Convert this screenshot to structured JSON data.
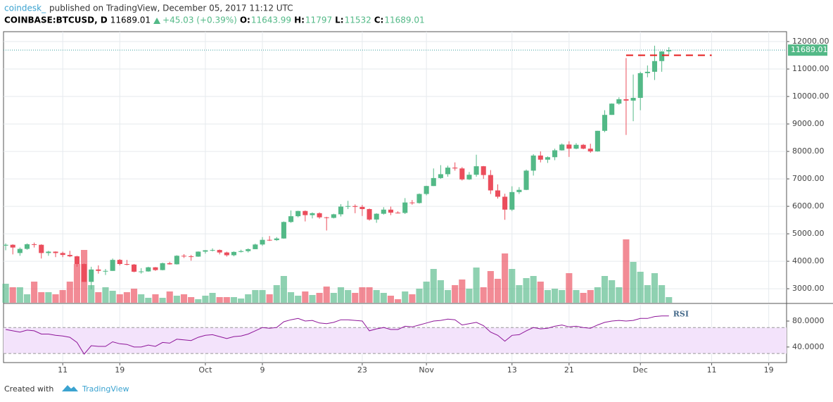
{
  "header": {
    "author": "coindesk_",
    "published": "published on TradingView, December 05, 2017 11:12 UTC",
    "symbol": "COINBASE:BTCUSD, D",
    "change": "+45.03 (+0.39%)",
    "ohlc_labels": [
      "O:",
      "H:",
      "L:",
      "C:"
    ]
  },
  "footer": {
    "created": "Created with",
    "brand": "TradingView"
  },
  "chart_data": {
    "type": "candlestick",
    "categories": [
      null,
      null,
      null,
      null,
      null,
      null,
      null,
      null,
      "11",
      null,
      null,
      null,
      null,
      null,
      null,
      null,
      "19",
      null,
      null,
      null,
      null,
      null,
      null,
      null,
      null,
      null,
      null,
      null,
      "Oct",
      null,
      null,
      null,
      null,
      null,
      null,
      null,
      "9",
      null,
      null,
      null,
      null,
      null,
      null,
      null,
      null,
      null,
      null,
      null,
      null,
      null,
      "23",
      null,
      null,
      null,
      null,
      null,
      null,
      null,
      null,
      "Nov",
      null,
      null,
      null,
      null,
      null,
      null,
      null,
      null,
      null,
      null,
      null,
      "13",
      null,
      null,
      null,
      null,
      null,
      null,
      null,
      "21",
      null,
      null,
      null,
      null,
      null,
      null,
      null,
      null,
      null,
      "Dec",
      null,
      null,
      null,
      null,
      null,
      null,
      null,
      null,
      null,
      "11",
      null,
      null,
      null,
      null,
      null,
      null,
      null,
      "19",
      null,
      null
    ],
    "ohlc": [
      [
        4570,
        4650,
        4400,
        4600
      ],
      [
        4600,
        4620,
        4250,
        4500
      ],
      [
        4300,
        4500,
        4200,
        4450
      ],
      [
        4450,
        4650,
        4420,
        4620
      ],
      [
        4620,
        4680,
        4500,
        4600
      ],
      [
        4600,
        4620,
        4100,
        4300
      ],
      [
        4300,
        4380,
        4200,
        4350
      ],
      [
        4350,
        4360,
        4150,
        4300
      ],
      [
        4300,
        4350,
        4150,
        4230
      ],
      [
        4230,
        4380,
        4150,
        4180
      ],
      [
        4180,
        4200,
        3800,
        3900
      ],
      [
        3900,
        3920,
        3250,
        3250
      ],
      [
        3250,
        3800,
        2980,
        3700
      ],
      [
        3700,
        3850,
        3550,
        3650
      ],
      [
        3650,
        3720,
        3500,
        3650
      ],
      [
        3650,
        4100,
        3650,
        4050
      ],
      [
        4050,
        4080,
        3850,
        3900
      ],
      [
        3900,
        4050,
        3850,
        3880
      ],
      [
        3880,
        3900,
        3600,
        3620
      ],
      [
        3620,
        3750,
        3550,
        3630
      ],
      [
        3630,
        3800,
        3620,
        3780
      ],
      [
        3780,
        3790,
        3650,
        3680
      ],
      [
        3680,
        3950,
        3670,
        3930
      ],
      [
        3930,
        3980,
        3880,
        3890
      ],
      [
        3890,
        4220,
        3880,
        4200
      ],
      [
        4200,
        4260,
        4120,
        4180
      ],
      [
        4180,
        4230,
        4020,
        4170
      ],
      [
        4170,
        4360,
        4160,
        4350
      ],
      [
        4350,
        4410,
        4280,
        4400
      ],
      [
        4400,
        4470,
        4360,
        4410
      ],
      [
        4410,
        4430,
        4250,
        4320
      ],
      [
        4320,
        4350,
        4170,
        4220
      ],
      [
        4220,
        4360,
        4180,
        4340
      ],
      [
        4340,
        4420,
        4320,
        4370
      ],
      [
        4370,
        4470,
        4320,
        4440
      ],
      [
        4440,
        4640,
        4440,
        4610
      ],
      [
        4610,
        4880,
        4560,
        4780
      ],
      [
        4780,
        4920,
        4740,
        4770
      ],
      [
        4770,
        4880,
        4740,
        4830
      ],
      [
        4830,
        5450,
        4820,
        5430
      ],
      [
        5430,
        5850,
        5400,
        5640
      ],
      [
        5640,
        5840,
        5600,
        5830
      ],
      [
        5830,
        5850,
        5450,
        5680
      ],
      [
        5680,
        5780,
        5560,
        5750
      ],
      [
        5750,
        5780,
        5550,
        5600
      ],
      [
        5600,
        5620,
        5120,
        5580
      ],
      [
        5580,
        5730,
        5560,
        5710
      ],
      [
        5710,
        6080,
        5630,
        5990
      ],
      [
        5990,
        6200,
        5900,
        6010
      ],
      [
        6010,
        6070,
        5750,
        5980
      ],
      [
        5980,
        6050,
        5650,
        5900
      ],
      [
        5900,
        5920,
        5480,
        5520
      ],
      [
        5520,
        5750,
        5400,
        5730
      ],
      [
        5730,
        5970,
        5700,
        5880
      ],
      [
        5880,
        5990,
        5680,
        5770
      ],
      [
        5770,
        5820,
        5740,
        5760
      ],
      [
        5760,
        6300,
        5720,
        6140
      ],
      [
        6140,
        6230,
        6060,
        6120
      ],
      [
        6120,
        6470,
        6100,
        6450
      ],
      [
        6450,
        6750,
        6400,
        6740
      ],
      [
        6740,
        7380,
        6740,
        7030
      ],
      [
        7030,
        7500,
        7000,
        7170
      ],
      [
        7170,
        7480,
        7080,
        7410
      ],
      [
        7410,
        7600,
        7300,
        7380
      ],
      [
        7380,
        7430,
        6940,
        6980
      ],
      [
        6980,
        7250,
        6960,
        7150
      ],
      [
        7150,
        7880,
        7080,
        7460
      ],
      [
        7460,
        7470,
        7000,
        7140
      ],
      [
        7140,
        7320,
        6450,
        6580
      ],
      [
        6580,
        6800,
        6280,
        6350
      ],
      [
        6350,
        6460,
        5510,
        5880
      ],
      [
        5880,
        6730,
        5830,
        6520
      ],
      [
        6520,
        6700,
        6450,
        6600
      ],
      [
        6600,
        7340,
        6590,
        7300
      ],
      [
        7300,
        7900,
        7120,
        7850
      ],
      [
        7850,
        8000,
        7600,
        7700
      ],
      [
        7700,
        7820,
        7580,
        7790
      ],
      [
        7790,
        8100,
        7680,
        8040
      ],
      [
        8040,
        8290,
        8030,
        8250
      ],
      [
        8250,
        8370,
        7800,
        8100
      ],
      [
        8100,
        8300,
        8080,
        8240
      ],
      [
        8240,
        8270,
        8080,
        8100
      ],
      [
        8100,
        8280,
        7950,
        8000
      ],
      [
        8000,
        8750,
        7990,
        8750
      ],
      [
        8750,
        9500,
        8700,
        9330
      ],
      [
        9330,
        9750,
        9330,
        9740
      ],
      [
        9740,
        9970,
        9700,
        9900
      ],
      [
        9900,
        11400,
        8600,
        9850
      ],
      [
        9850,
        10800,
        9100,
        9950
      ],
      [
        9950,
        10900,
        9500,
        10850
      ],
      [
        10850,
        11130,
        10700,
        10900
      ],
      [
        10900,
        11850,
        10600,
        11290
      ],
      [
        11290,
        11650,
        10900,
        11640
      ],
      [
        11643.99,
        11797.0,
        11532.0,
        11689.01
      ],
      null,
      null,
      null,
      null,
      null,
      null,
      null,
      null,
      null,
      null,
      null,
      null,
      null,
      null,
      null,
      null
    ],
    "volume": [
      27,
      22,
      22,
      12,
      30,
      15,
      15,
      12,
      18,
      30,
      55,
      75,
      25,
      15,
      22,
      17,
      12,
      15,
      20,
      12,
      7,
      12,
      7,
      16,
      10,
      12,
      8,
      5,
      10,
      14,
      8,
      8,
      8,
      6,
      12,
      18,
      18,
      12,
      25,
      38,
      15,
      10,
      16,
      11,
      14,
      23,
      14,
      22,
      18,
      14,
      22,
      22,
      18,
      14,
      10,
      5,
      16,
      12,
      20,
      30,
      48,
      32,
      18,
      25,
      33,
      20,
      50,
      22,
      45,
      34,
      70,
      48,
      25,
      35,
      38,
      30,
      18,
      20,
      18,
      42,
      18,
      14,
      18,
      22,
      38,
      32,
      22,
      90,
      58,
      44,
      25,
      42,
      25,
      8,
      null,
      null,
      null,
      null,
      null,
      null,
      null,
      null,
      null,
      null,
      null,
      null,
      null,
      null,
      null,
      null
    ],
    "vlim": [
      0,
      100
    ],
    "rsi": [
      67,
      65,
      63,
      66,
      65,
      60,
      60,
      58,
      57,
      55,
      47,
      29,
      42,
      41,
      41,
      48,
      45,
      44,
      40,
      40,
      43,
      41,
      47,
      46,
      52,
      51,
      50,
      55,
      58,
      59,
      56,
      53,
      56,
      57,
      60,
      65,
      70,
      69,
      70,
      79,
      82,
      84,
      80,
      81,
      77,
      76,
      78,
      82,
      82,
      81,
      80,
      65,
      68,
      70,
      67,
      67,
      72,
      71,
      74,
      77,
      80,
      81,
      83,
      82,
      74,
      76,
      78,
      73,
      63,
      58,
      49,
      58,
      59,
      65,
      70,
      68,
      69,
      72,
      74,
      71,
      72,
      70,
      69,
      74,
      78,
      80,
      81,
      80,
      81,
      84,
      84,
      87,
      88,
      88,
      null,
      null,
      null,
      null,
      null,
      null,
      null,
      null,
      null,
      null,
      null,
      null,
      null,
      null,
      null,
      null
    ],
    "rsi_name": "RSI",
    "rsi_band": [
      30,
      70
    ],
    "rsilim": [
      16,
      105
    ],
    "rsiticks": [
      {
        "value": 40,
        "label": "40.0000"
      },
      {
        "value": 80,
        "label": "80.0000"
      }
    ],
    "ylim": [
      2490,
      12360
    ],
    "yticks": [
      {
        "value": 3000,
        "label": "3000.00"
      },
      {
        "value": 4000,
        "label": "4000.00"
      },
      {
        "value": 5000,
        "label": "5000.00"
      },
      {
        "value": 6000,
        "label": "6000.00"
      },
      {
        "value": 7000,
        "label": "7000.00"
      },
      {
        "value": 8000,
        "label": "8000.00"
      },
      {
        "value": 9000,
        "label": "9000.00"
      },
      {
        "value": 10000,
        "label": "10000.00"
      },
      {
        "value": 11000,
        "label": "11000.00"
      },
      {
        "value": 12000,
        "label": "12000.00"
      }
    ],
    "hline": 11500,
    "grid": true,
    "up_color": "#53b987",
    "down_color": "#eb4d5c",
    "rsi_color": "#8e1599"
  }
}
